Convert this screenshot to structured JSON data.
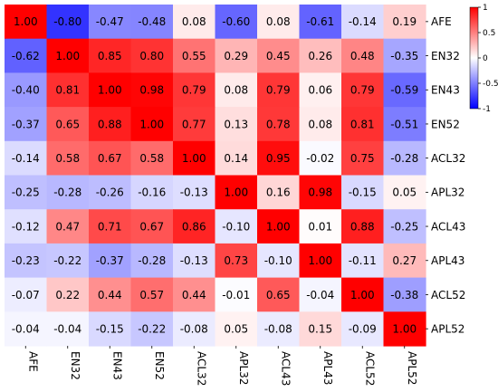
{
  "chart_data": {
    "type": "heatmap",
    "title": "",
    "xlabel": "",
    "ylabel": "",
    "x": [
      "AFE",
      "EN32",
      "EN43",
      "EN52",
      "ACL32",
      "APL32",
      "ACL43",
      "APL43",
      "ACL52",
      "APL52"
    ],
    "y": [
      "AFE",
      "EN32",
      "EN43",
      "EN52",
      "ACL32",
      "APL32",
      "ACL43",
      "APL43",
      "ACL52",
      "APL52"
    ],
    "values": [
      [
        1.0,
        -0.8,
        -0.47,
        -0.48,
        0.08,
        -0.6,
        0.08,
        -0.61,
        -0.14,
        0.19
      ],
      [
        -0.62,
        1.0,
        0.85,
        0.8,
        0.55,
        0.29,
        0.45,
        0.26,
        0.48,
        -0.35
      ],
      [
        -0.4,
        0.81,
        1.0,
        0.98,
        0.79,
        0.08,
        0.79,
        0.06,
        0.79,
        -0.59
      ],
      [
        -0.37,
        0.65,
        0.88,
        1.0,
        0.77,
        0.13,
        0.78,
        0.08,
        0.81,
        -0.51
      ],
      [
        -0.14,
        0.58,
        0.67,
        0.58,
        1.0,
        0.14,
        0.95,
        -0.02,
        0.75,
        -0.28
      ],
      [
        -0.25,
        -0.28,
        -0.26,
        -0.16,
        -0.13,
        1.0,
        0.16,
        0.98,
        -0.15,
        0.05
      ],
      [
        -0.12,
        0.47,
        0.71,
        0.67,
        0.86,
        -0.1,
        1.0,
        0.01,
        0.88,
        -0.25
      ],
      [
        -0.23,
        -0.22,
        -0.37,
        -0.28,
        -0.13,
        0.73,
        -0.1,
        1.0,
        -0.11,
        0.27
      ],
      [
        -0.07,
        0.22,
        0.44,
        0.57,
        0.44,
        -0.01,
        0.65,
        -0.04,
        1.0,
        -0.38
      ],
      [
        -0.04,
        -0.04,
        -0.15,
        -0.22,
        -0.08,
        0.05,
        -0.08,
        0.15,
        -0.09,
        1.0
      ]
    ],
    "vmin": -1,
    "vmax": 1,
    "colormap": "bwr",
    "colormap_colors": {
      "low": "#0000ff",
      "mid": "#ffffff",
      "high": "#ff0000"
    },
    "cell_text_color": "#000000",
    "x_tick_rotation": "vertical",
    "y_ticks_side": "right",
    "colorbar": {
      "placement": "right",
      "ticks": [
        1,
        0.5,
        0,
        -0.5,
        -1
      ],
      "tick_labels": [
        "1",
        "0.5",
        "0",
        "-0.5",
        "-1"
      ]
    }
  }
}
